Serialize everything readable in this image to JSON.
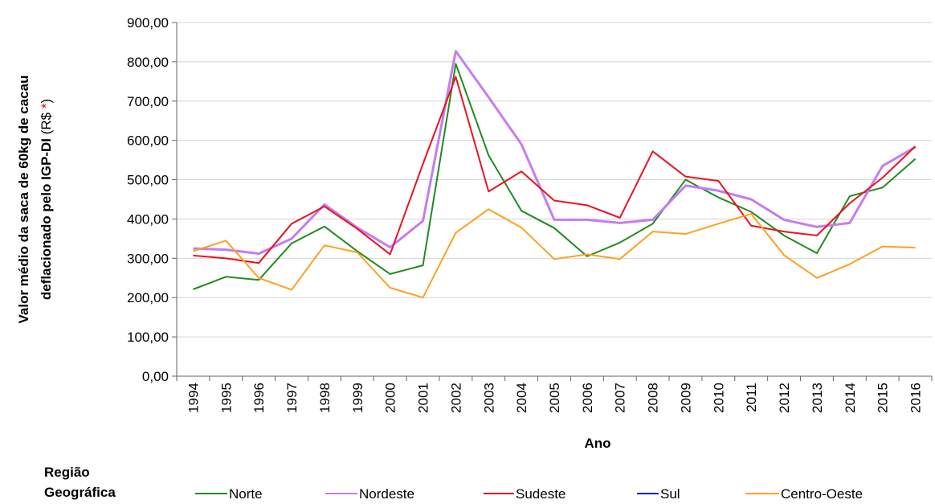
{
  "chart_data": {
    "type": "line",
    "y_label_lines": [
      "Valor médio da saca de 60kg de cacau",
      "deflacionado pelo IGP-DI"
    ],
    "y_label_unit": [
      "(R$",
      "*",
      ")"
    ],
    "x_label": "Ano",
    "legend_title": [
      "Região",
      "Geográfica"
    ],
    "categories": [
      "1994",
      "1995",
      "1996",
      "1997",
      "1998",
      "1999",
      "2000",
      "2001",
      "2002",
      "2003",
      "2004",
      "2005",
      "2006",
      "2007",
      "2008",
      "2009",
      "2010",
      "2011",
      "2012",
      "2013",
      "2014",
      "2015",
      "2016"
    ],
    "series": [
      {
        "name": "Norte",
        "color": "#1e8c1e",
        "values": [
          221,
          253,
          245,
          338,
          381,
          318,
          260,
          282,
          795,
          562,
          421,
          377,
          305,
          340,
          388,
          500,
          455,
          418,
          358,
          313,
          458,
          480,
          553
        ]
      },
      {
        "name": "Nordeste",
        "color": "#c57cf0",
        "values": [
          325,
          322,
          312,
          350,
          437,
          378,
          328,
          395,
          827,
          710,
          590,
          398,
          398,
          390,
          398,
          485,
          472,
          450,
          398,
          380,
          390,
          535,
          583
        ]
      },
      {
        "name": "Sudeste",
        "color": "#e8141e",
        "values": [
          307,
          300,
          288,
          388,
          432,
          375,
          310,
          540,
          762,
          470,
          521,
          447,
          435,
          403,
          572,
          508,
          497,
          383,
          368,
          358,
          440,
          505,
          585
        ]
      },
      {
        "name": "Sul",
        "color": "#1414e0",
        "values": [
          null,
          null,
          null,
          null,
          null,
          null,
          null,
          null,
          null,
          null,
          null,
          null,
          null,
          null,
          null,
          null,
          null,
          null,
          null,
          null,
          null,
          null,
          null
        ]
      },
      {
        "name": "Centro-Oeste",
        "color": "#ffa020",
        "values": [
          318,
          345,
          250,
          220,
          333,
          315,
          225,
          200,
          365,
          425,
          378,
          298,
          310,
          298,
          368,
          362,
          388,
          413,
          308,
          250,
          285,
          330,
          327
        ]
      }
    ],
    "ylim": [
      0,
      900
    ],
    "yticks": [
      {
        "value": 0,
        "label": "0,00"
      },
      {
        "value": 100,
        "label": "100,00"
      },
      {
        "value": 200,
        "label": "200,00"
      },
      {
        "value": 300,
        "label": "300,00"
      },
      {
        "value": 400,
        "label": "400,00"
      },
      {
        "value": 500,
        "label": "500,00"
      },
      {
        "value": 600,
        "label": "600,00"
      },
      {
        "value": 700,
        "label": "700,00"
      },
      {
        "value": 800,
        "label": "800,00"
      },
      {
        "value": 900,
        "label": "900,00"
      }
    ],
    "grid": true
  }
}
